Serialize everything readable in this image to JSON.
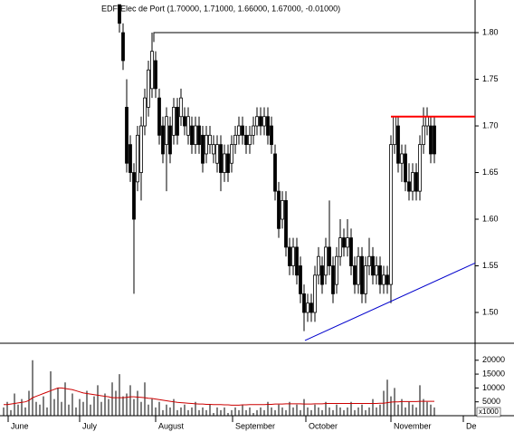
{
  "chart_data": [
    {
      "type": "candlestick",
      "title": "EDF-Elec de Port (1.70000, 1.71000, 1.66000, 1.67000, -0.01000)",
      "x": [
        33,
        34,
        35,
        36,
        37,
        38,
        39,
        40,
        41,
        42,
        43,
        44,
        45,
        46,
        47,
        48,
        49,
        50,
        51,
        52,
        53,
        54,
        55,
        56,
        57,
        58,
        59,
        60,
        61,
        62,
        63,
        64,
        65,
        66,
        67,
        68,
        69,
        70,
        71,
        72,
        73,
        74,
        75,
        76,
        77,
        78,
        79,
        80,
        81,
        82,
        83,
        84,
        85,
        86,
        87,
        88,
        89,
        90,
        91,
        92,
        93,
        94,
        95,
        96,
        97,
        98,
        99,
        100,
        101,
        102,
        103,
        104,
        105,
        106,
        107,
        108,
        109,
        110,
        111,
        112,
        113,
        114,
        115,
        116,
        117,
        118,
        119,
        120
      ],
      "open": [
        1.83,
        1.8,
        1.72,
        1.68,
        1.65,
        1.64,
        1.65,
        1.7,
        1.72,
        1.74,
        1.77,
        1.73,
        1.7,
        1.68,
        1.7,
        1.69,
        1.72,
        1.71,
        1.71,
        1.69,
        1.7,
        1.68,
        1.7,
        1.69,
        1.67,
        1.68,
        1.67,
        1.66,
        1.68,
        1.65,
        1.67,
        1.66,
        1.68,
        1.69,
        1.7,
        1.69,
        1.68,
        1.69,
        1.7,
        1.71,
        1.7,
        1.71,
        1.7,
        1.67,
        1.63,
        1.6,
        1.62,
        1.57,
        1.55,
        1.57,
        1.55,
        1.52,
        1.5,
        1.51,
        1.5,
        1.54,
        1.55,
        1.54,
        1.57,
        1.55,
        1.53,
        1.56,
        1.58,
        1.57,
        1.58,
        1.55,
        1.53,
        1.56,
        1.52,
        1.55,
        1.56,
        1.54,
        1.55,
        1.53,
        1.54,
        1.53,
        1.68,
        1.7,
        1.66,
        1.67,
        1.64,
        1.63,
        1.65,
        1.63,
        1.68,
        1.7,
        1.7,
        1.7
      ],
      "high": [
        1.83,
        1.81,
        1.75,
        1.69,
        1.66,
        1.7,
        1.71,
        1.74,
        1.77,
        1.8,
        1.78,
        1.74,
        1.71,
        1.72,
        1.71,
        1.73,
        1.73,
        1.74,
        1.72,
        1.72,
        1.71,
        1.71,
        1.71,
        1.7,
        1.7,
        1.7,
        1.69,
        1.69,
        1.69,
        1.68,
        1.68,
        1.69,
        1.7,
        1.71,
        1.71,
        1.7,
        1.7,
        1.71,
        1.72,
        1.72,
        1.72,
        1.72,
        1.71,
        1.68,
        1.64,
        1.63,
        1.63,
        1.58,
        1.58,
        1.58,
        1.56,
        1.53,
        1.52,
        1.52,
        1.55,
        1.57,
        1.56,
        1.58,
        1.62,
        1.56,
        1.57,
        1.6,
        1.59,
        1.6,
        1.59,
        1.56,
        1.57,
        1.57,
        1.56,
        1.58,
        1.57,
        1.56,
        1.56,
        1.55,
        1.55,
        1.69,
        1.71,
        1.71,
        1.68,
        1.68,
        1.66,
        1.66,
        1.66,
        1.69,
        1.72,
        1.72,
        1.71,
        1.71
      ],
      "low": [
        1.8,
        1.76,
        1.65,
        1.64,
        1.52,
        1.63,
        1.62,
        1.69,
        1.71,
        1.73,
        1.73,
        1.68,
        1.66,
        1.63,
        1.66,
        1.68,
        1.68,
        1.7,
        1.69,
        1.68,
        1.67,
        1.67,
        1.67,
        1.65,
        1.66,
        1.67,
        1.66,
        1.65,
        1.63,
        1.64,
        1.64,
        1.65,
        1.67,
        1.68,
        1.68,
        1.67,
        1.67,
        1.68,
        1.69,
        1.69,
        1.69,
        1.68,
        1.67,
        1.62,
        1.58,
        1.59,
        1.56,
        1.54,
        1.54,
        1.53,
        1.51,
        1.48,
        1.49,
        1.49,
        1.49,
        1.53,
        1.52,
        1.53,
        1.54,
        1.51,
        1.52,
        1.55,
        1.56,
        1.56,
        1.54,
        1.52,
        1.52,
        1.51,
        1.51,
        1.54,
        1.53,
        1.53,
        1.52,
        1.52,
        1.52,
        1.51,
        1.67,
        1.65,
        1.64,
        1.63,
        1.62,
        1.62,
        1.62,
        1.62,
        1.67,
        1.69,
        1.66,
        1.66
      ],
      "close": [
        1.81,
        1.77,
        1.66,
        1.65,
        1.6,
        1.69,
        1.7,
        1.73,
        1.76,
        1.78,
        1.74,
        1.69,
        1.67,
        1.71,
        1.67,
        1.72,
        1.69,
        1.73,
        1.7,
        1.71,
        1.68,
        1.7,
        1.68,
        1.66,
        1.69,
        1.69,
        1.68,
        1.68,
        1.65,
        1.67,
        1.65,
        1.68,
        1.69,
        1.7,
        1.69,
        1.68,
        1.69,
        1.7,
        1.71,
        1.7,
        1.71,
        1.69,
        1.68,
        1.63,
        1.59,
        1.62,
        1.57,
        1.55,
        1.57,
        1.54,
        1.52,
        1.5,
        1.51,
        1.5,
        1.54,
        1.56,
        1.53,
        1.57,
        1.55,
        1.52,
        1.56,
        1.58,
        1.57,
        1.58,
        1.55,
        1.53,
        1.56,
        1.52,
        1.55,
        1.56,
        1.54,
        1.55,
        1.53,
        1.54,
        1.53,
        1.68,
        1.71,
        1.66,
        1.67,
        1.64,
        1.63,
        1.65,
        1.63,
        1.68,
        1.7,
        1.71,
        1.67,
        1.67
      ],
      "xlim": [
        0,
        131.25
      ],
      "ylim": [
        1.467,
        1.835
      ],
      "yticks": [
        {
          "value": 1.5,
          "label": "1.50"
        },
        {
          "value": 1.55,
          "label": "1.55"
        },
        {
          "value": 1.6,
          "label": "1.60"
        },
        {
          "value": 1.65,
          "label": "1.65"
        },
        {
          "value": 1.7,
          "label": "1.70"
        },
        {
          "value": 1.75,
          "label": "1.75"
        },
        {
          "value": 1.8,
          "label": "1.80"
        }
      ],
      "xticks": [
        {
          "value": 2.25,
          "label": "June"
        },
        {
          "value": 22,
          "label": "July"
        },
        {
          "value": 43,
          "label": "August"
        },
        {
          "value": 64.25,
          "label": "September"
        },
        {
          "value": 84.5,
          "label": "October"
        },
        {
          "value": 108,
          "label": "November"
        },
        {
          "value": 128,
          "label": "De"
        }
      ],
      "lines": [
        {
          "color": "#000000",
          "x": [
            42.5,
            42.5,
            131.25
          ],
          "y": [
            1.79,
            1.8,
            1.8
          ]
        },
        {
          "color": "#ff0000",
          "x": [
            108,
            131.25
          ],
          "y": [
            1.71,
            1.71
          ]
        },
        {
          "color": "#0000cc",
          "x": [
            84.25,
            131.25
          ],
          "y": [
            1.47,
            1.553
          ]
        }
      ]
    },
    {
      "type": "bar",
      "x": [
        1,
        2,
        3,
        4,
        5,
        6,
        7,
        8,
        9,
        10,
        11,
        12,
        13,
        14,
        15,
        16,
        17,
        18,
        19,
        20,
        21,
        22,
        23,
        24,
        25,
        26,
        27,
        28,
        29,
        30,
        31,
        32,
        33,
        34,
        35,
        36,
        37,
        38,
        39,
        40,
        41,
        42,
        43,
        44,
        45,
        46,
        47,
        48,
        49,
        50,
        51,
        52,
        53,
        54,
        55,
        56,
        57,
        58,
        59,
        60,
        61,
        62,
        63,
        64,
        65,
        66,
        67,
        68,
        69,
        70,
        71,
        72,
        73,
        74,
        75,
        76,
        77,
        78,
        79,
        80,
        81,
        82,
        83,
        84,
        85,
        86,
        87,
        88,
        89,
        90,
        91,
        92,
        93,
        94,
        95,
        96,
        97,
        98,
        99,
        100,
        101,
        102,
        103,
        104,
        105,
        106,
        107,
        108,
        109,
        110,
        111,
        112,
        113,
        114,
        115,
        116,
        117,
        118,
        119,
        120
      ],
      "values": [
        3000,
        5000,
        2000,
        8000,
        4000,
        6000,
        3000,
        9000,
        20000,
        5000,
        4000,
        7000,
        3000,
        16000,
        6000,
        10000,
        5000,
        12000,
        4000,
        8000,
        3000,
        6000,
        5000,
        9000,
        4000,
        7000,
        11000,
        5000,
        8000,
        6000,
        12000,
        9000,
        15000,
        7000,
        8000,
        11000,
        6000,
        9000,
        5000,
        12000,
        4000,
        6000,
        3000,
        5000,
        2000,
        4000,
        3000,
        6000,
        2000,
        3000,
        4000,
        2000,
        3000,
        5000,
        2000,
        3000,
        2000,
        4000,
        1000,
        3000,
        2000,
        3000,
        1000,
        2000,
        3000,
        2000,
        4000,
        2000,
        3000,
        1000,
        2000,
        3000,
        2000,
        5000,
        3000,
        2000,
        4000,
        3000,
        2000,
        5000,
        3000,
        4000,
        2000,
        6000,
        3000,
        2000,
        4000,
        3000,
        2000,
        5000,
        3000,
        2000,
        4000,
        3000,
        2000,
        3000,
        5000,
        2000,
        3000,
        4000,
        2000,
        3000,
        6000,
        3000,
        4000,
        9000,
        13000,
        7000,
        10000,
        4000,
        6000,
        3000,
        5000,
        4000,
        3000,
        11000,
        6000,
        5000,
        4000,
        3000
      ],
      "color": "#000000",
      "average": {
        "color": "#cc0000",
        "values": [
          4000,
          4000,
          4200,
          4400,
          4600,
          4800,
          5000,
          5500,
          6500,
          7000,
          7500,
          8000,
          8500,
          9000,
          9500,
          10000,
          10000,
          9800,
          9600,
          9400,
          9000,
          8600,
          8200,
          8000,
          7800,
          7600,
          7400,
          7200,
          7000,
          6800,
          6500,
          6500,
          6500,
          6500,
          6600,
          6800,
          6800,
          6700,
          6600,
          6500,
          6300,
          6200,
          6000,
          5800,
          5600,
          5400,
          5200,
          5000,
          4800,
          4700,
          4600,
          4500,
          4400,
          4300,
          4200,
          4200,
          4100,
          4100,
          4000,
          4000,
          4000,
          3900,
          3900,
          3800,
          3800,
          3800,
          3900,
          3900,
          4000,
          4000,
          4000,
          4000,
          4000,
          4100,
          4100,
          4200,
          4200,
          4200,
          4300,
          4300,
          4300,
          4300,
          4300,
          4200,
          4200,
          4200,
          4300,
          4300,
          4300,
          4400,
          4400,
          4400,
          4400,
          4400,
          4400,
          4400,
          4400,
          4400,
          4400,
          4400,
          4400,
          4400,
          4400,
          4400,
          4500,
          4500,
          4700,
          4900,
          5000,
          5000,
          5100,
          5100,
          5100,
          5100,
          5100,
          5200,
          5200,
          5200,
          5200,
          5200
        ]
      },
      "xlim": [
        0,
        131.25
      ],
      "ylim": [
        0,
        25800
      ],
      "yticks": [
        5000,
        10000,
        15000,
        20000
      ],
      "unit_label": "x1000"
    }
  ]
}
